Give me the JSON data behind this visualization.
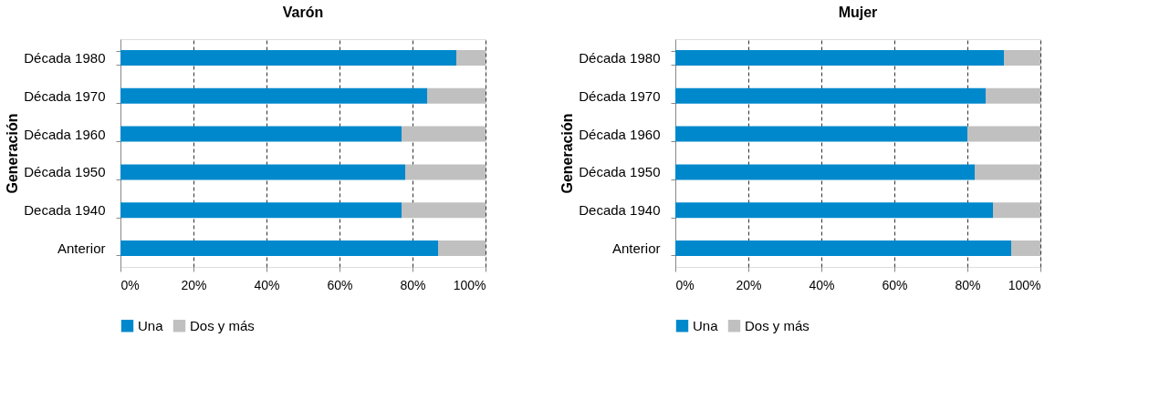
{
  "chart_data": [
    {
      "type": "bar",
      "title": "Varón",
      "ylabel": "Generación",
      "orientation": "horizontal",
      "stacked": true,
      "grid": "x",
      "legend": "bottom",
      "categories": [
        "Década 1980",
        "Década 1970",
        "Década 1960",
        "Década 1950",
        "Decada 1940",
        "Anterior"
      ],
      "series": [
        {
          "name": "Una",
          "color": "#0088cc",
          "values": [
            92,
            84,
            77,
            78,
            77,
            87
          ]
        },
        {
          "name": "Dos y más",
          "color": "#c0c0c0",
          "values": [
            8,
            16,
            23,
            22,
            23,
            13
          ]
        }
      ],
      "xlim": [
        0,
        100
      ],
      "xticks": [
        {
          "value": 0,
          "label": "0%"
        },
        {
          "value": 20,
          "label": "20%"
        },
        {
          "value": 40,
          "label": "40%"
        },
        {
          "value": 60,
          "label": "60%"
        },
        {
          "value": 80,
          "label": "80%"
        },
        {
          "value": 100,
          "label": "100%"
        }
      ]
    },
    {
      "type": "bar",
      "title": "Mujer",
      "ylabel": "Generación",
      "orientation": "horizontal",
      "stacked": true,
      "grid": "x",
      "legend": "bottom",
      "categories": [
        "Década 1980",
        "Década 1970",
        "Década 1960",
        "Década 1950",
        "Decada 1940",
        "Anterior"
      ],
      "series": [
        {
          "name": "Una",
          "color": "#0088cc",
          "values": [
            90,
            85,
            80,
            82,
            87,
            92
          ]
        },
        {
          "name": "Dos y más",
          "color": "#c0c0c0",
          "values": [
            10,
            15,
            20,
            18,
            13,
            8
          ]
        }
      ],
      "xlim": [
        0,
        100
      ],
      "xticks": [
        {
          "value": 0,
          "label": "0%"
        },
        {
          "value": 20,
          "label": "20%"
        },
        {
          "value": 40,
          "label": "40%"
        },
        {
          "value": 60,
          "label": "60%"
        },
        {
          "value": 80,
          "label": "80%"
        },
        {
          "value": 100,
          "label": "100%"
        }
      ]
    }
  ]
}
